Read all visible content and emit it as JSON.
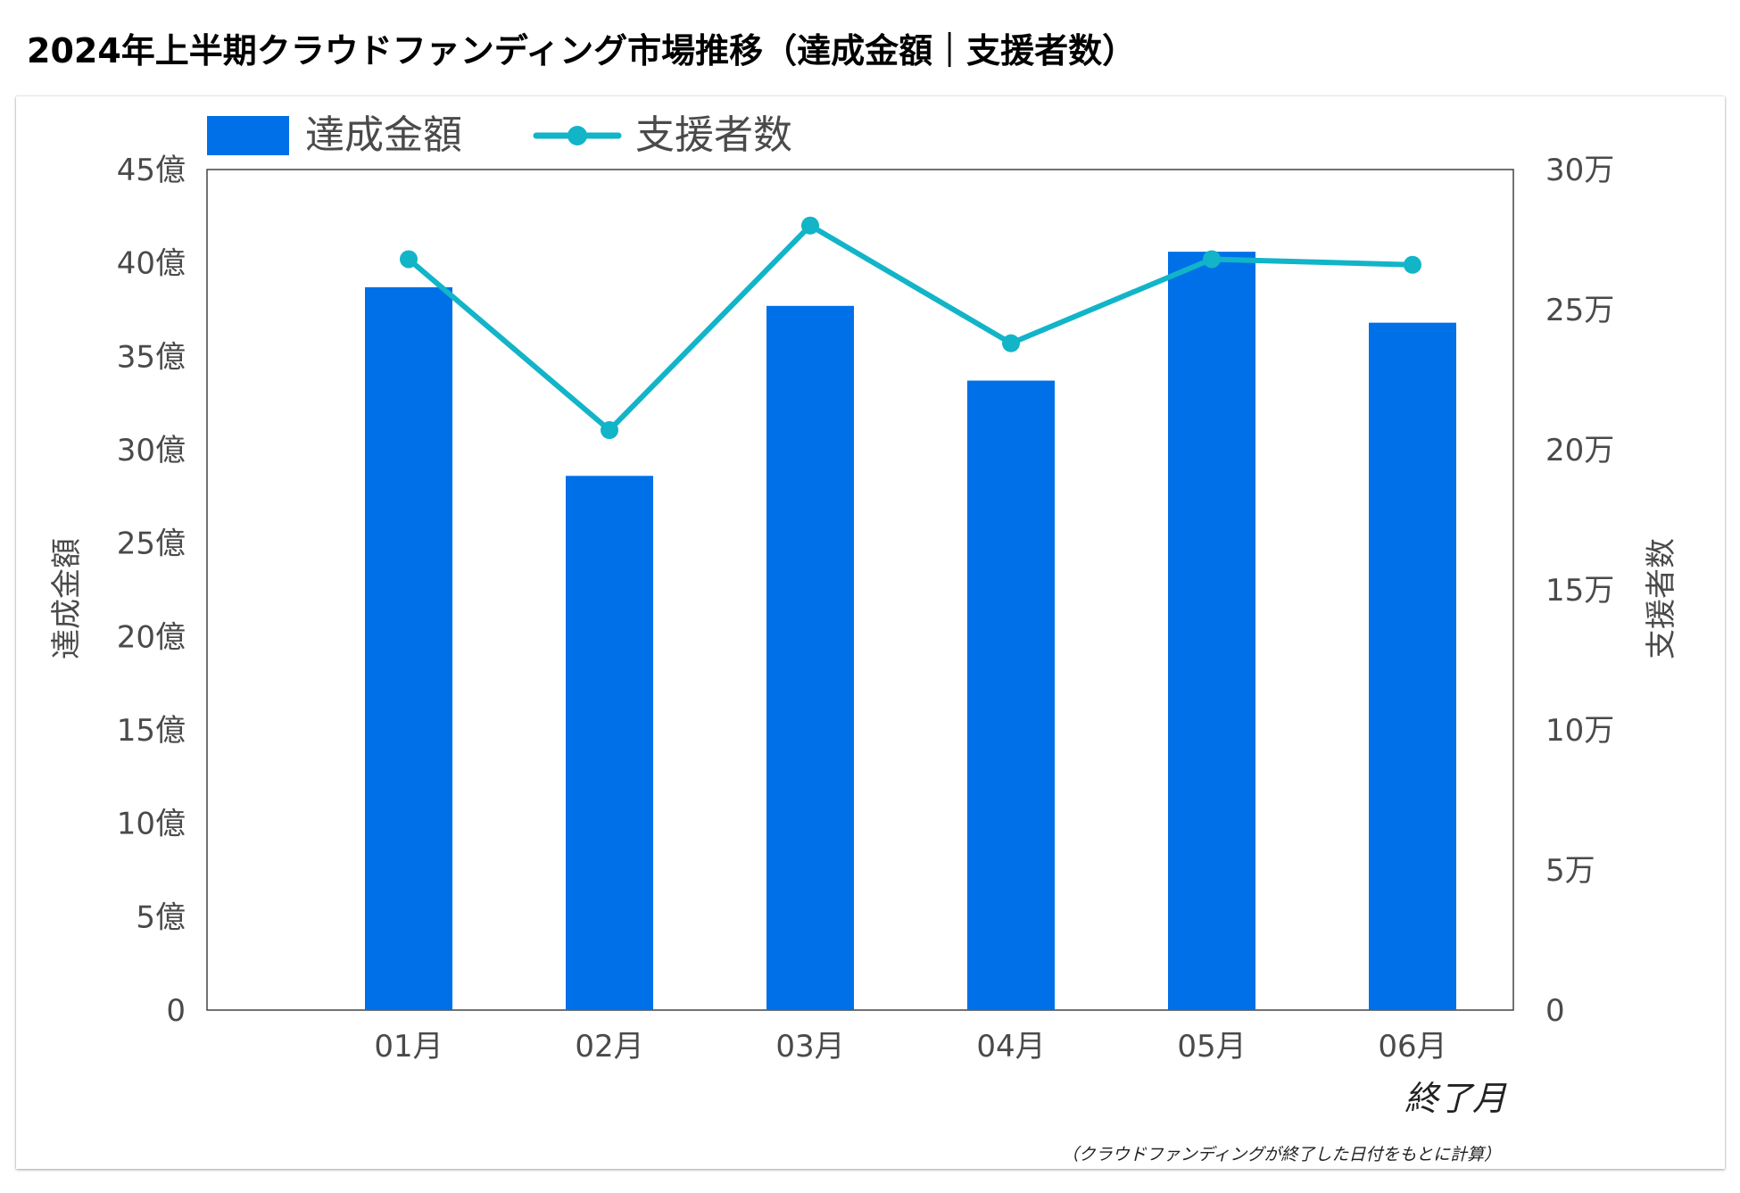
{
  "title": "2024年上半期クラウドファンディング市場推移（達成金額｜支援者数）",
  "chart_data": {
    "type": "bar",
    "title": "2024年上半期クラウドファンディング市場推移（達成金額｜支援者数）",
    "categories": [
      "01月",
      "02月",
      "03月",
      "04月",
      "05月",
      "06月"
    ],
    "series": [
      {
        "name": "達成金額",
        "kind": "bar",
        "axis": "left",
        "unit": "億",
        "color": "#0070e8",
        "values": [
          38.7,
          28.6,
          37.7,
          33.7,
          40.6,
          36.8
        ]
      },
      {
        "name": "支援者数",
        "kind": "line",
        "axis": "right",
        "unit": "万",
        "color": "#12b4c8",
        "values": [
          26.8,
          20.7,
          28.0,
          23.8,
          26.8,
          26.6
        ]
      }
    ],
    "y_left": {
      "label": "達成金額",
      "range": [
        0,
        45
      ],
      "ticks": [
        "0",
        "5億",
        "10億",
        "15億",
        "20億",
        "25億",
        "30億",
        "35億",
        "40億",
        "45億"
      ]
    },
    "y_right": {
      "label": "支援者数",
      "range": [
        0,
        30
      ],
      "ticks": [
        "0",
        "5万",
        "10万",
        "15万",
        "20万",
        "25万",
        "30万"
      ]
    },
    "xlabel": "終了月",
    "note": "（クラウドファンディングが終了した日付をもとに計算）",
    "legend": [
      "達成金額",
      "支援者数"
    ],
    "legend_position": "top-left",
    "grid": false
  }
}
